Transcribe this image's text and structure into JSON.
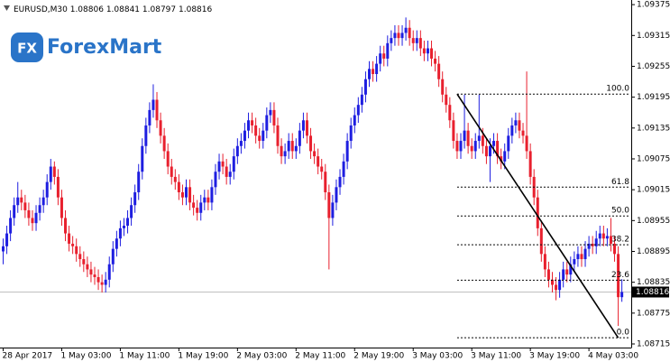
{
  "chart_data": {
    "type": "candlestick",
    "symbol": "EURUSD,M30",
    "logo": "ForexMart",
    "logo_mark": "FX",
    "up_color": "#1e1ee0",
    "down_color": "#e8202e",
    "ylim": [
      1.08708,
      1.09384
    ],
    "yticks": [
      1.09375,
      1.09315,
      1.09255,
      1.09195,
      1.09135,
      1.09075,
      1.09015,
      1.08955,
      1.08895,
      1.08835,
      1.08775,
      1.08715
    ],
    "categories": [
      "28 Apr 2017",
      null,
      null,
      null,
      null,
      null,
      null,
      null,
      null,
      null,
      null,
      null,
      null,
      null,
      null,
      null,
      "1 May 03:00",
      null,
      null,
      null,
      null,
      null,
      null,
      null,
      null,
      null,
      null,
      null,
      null,
      null,
      null,
      null,
      "1 May 11:00",
      null,
      null,
      null,
      null,
      null,
      null,
      null,
      null,
      null,
      null,
      null,
      null,
      null,
      null,
      null,
      "1 May 19:00",
      null,
      null,
      null,
      null,
      null,
      null,
      null,
      null,
      null,
      null,
      null,
      null,
      null,
      null,
      null,
      "2 May 03:00",
      null,
      null,
      null,
      null,
      null,
      null,
      null,
      null,
      null,
      null,
      null,
      null,
      null,
      null,
      null,
      "2 May 11:00",
      null,
      null,
      null,
      null,
      null,
      null,
      null,
      null,
      null,
      null,
      null,
      null,
      null,
      null,
      null,
      "2 May 19:00",
      null,
      null,
      null,
      null,
      null,
      null,
      null,
      null,
      null,
      null,
      null,
      null,
      null,
      null,
      null,
      "3 May 03:00",
      null,
      null,
      null,
      null,
      null,
      null,
      null,
      null,
      null,
      null,
      null,
      null,
      null,
      null,
      null,
      "3 May 11:00",
      null,
      null,
      null,
      null,
      null,
      null,
      null,
      null,
      null,
      null,
      null,
      null,
      null,
      null,
      null,
      "3 May 19:00",
      null,
      null,
      null,
      null,
      null,
      null,
      null,
      null,
      null,
      null,
      null,
      null,
      null,
      null,
      null,
      "4 May 03:00",
      null,
      null,
      null,
      null,
      null,
      null,
      null,
      null,
      null
    ],
    "ohlc": [
      [
        1.08895,
        1.0892,
        1.0887,
        1.08905
      ],
      [
        1.08905,
        1.08945,
        1.0889,
        1.0893
      ],
      [
        1.0893,
        1.08975,
        1.08915,
        1.0896
      ],
      [
        1.0896,
        1.09,
        1.08945,
        1.08985
      ],
      [
        1.08985,
        1.0903,
        1.0897,
        1.09
      ],
      [
        1.09,
        1.09015,
        1.08975,
        1.0899
      ],
      [
        1.0899,
        1.09005,
        1.0896,
        1.08975
      ],
      [
        1.08975,
        1.0899,
        1.08945,
        1.0896
      ],
      [
        1.0896,
        1.08975,
        1.08935,
        1.0895
      ],
      [
        1.0895,
        1.08985,
        1.08935,
        1.0897
      ],
      [
        1.0897,
        1.09,
        1.08955,
        1.08985
      ],
      [
        1.08985,
        1.09015,
        1.0897,
        1.09
      ],
      [
        1.09,
        1.09045,
        1.08985,
        1.0903
      ],
      [
        1.0903,
        1.09075,
        1.09015,
        1.0906
      ],
      [
        1.0906,
        1.0907,
        1.09025,
        1.0904
      ],
      [
        1.0904,
        1.09055,
        1.08985,
        1.09
      ],
      [
        1.09,
        1.09015,
        1.08945,
        1.0896
      ],
      [
        1.0896,
        1.08975,
        1.08915,
        1.0893
      ],
      [
        1.0893,
        1.08945,
        1.08895,
        1.0891
      ],
      [
        1.0891,
        1.08925,
        1.0889,
        1.08905
      ],
      [
        1.08905,
        1.0892,
        1.08875,
        1.0889
      ],
      [
        1.0889,
        1.08905,
        1.08865,
        1.0888
      ],
      [
        1.0888,
        1.08895,
        1.08855,
        1.0887
      ],
      [
        1.0887,
        1.08885,
        1.08845,
        1.0886
      ],
      [
        1.0886,
        1.08875,
        1.08835,
        1.0885
      ],
      [
        1.0885,
        1.08865,
        1.0883,
        1.08845
      ],
      [
        1.08845,
        1.0886,
        1.0882,
        1.08835
      ],
      [
        1.08835,
        1.0885,
        1.08815,
        1.0883
      ],
      [
        1.0883,
        1.08855,
        1.08815,
        1.0884
      ],
      [
        1.0884,
        1.08885,
        1.08825,
        1.0887
      ],
      [
        1.0887,
        1.08915,
        1.08855,
        1.089
      ],
      [
        1.089,
        1.08935,
        1.08885,
        1.0892
      ],
      [
        1.0892,
        1.08955,
        1.08905,
        1.0894
      ],
      [
        1.0894,
        1.0896,
        1.08925,
        1.08945
      ],
      [
        1.08945,
        1.08975,
        1.0893,
        1.0896
      ],
      [
        1.0896,
        1.09,
        1.08945,
        1.08985
      ],
      [
        1.08985,
        1.09025,
        1.0897,
        1.0901
      ],
      [
        1.0901,
        1.09065,
        1.08995,
        1.0905
      ],
      [
        1.0905,
        1.09115,
        1.09035,
        1.091
      ],
      [
        1.091,
        1.09155,
        1.09085,
        1.0914
      ],
      [
        1.0914,
        1.09185,
        1.09125,
        1.0917
      ],
      [
        1.0917,
        1.0922,
        1.09155,
        1.0919
      ],
      [
        1.0919,
        1.09205,
        1.09135,
        1.0915
      ],
      [
        1.0915,
        1.09165,
        1.09105,
        1.0912
      ],
      [
        1.0912,
        1.09135,
        1.09075,
        1.0909
      ],
      [
        1.0909,
        1.09105,
        1.09045,
        1.0906
      ],
      [
        1.0906,
        1.09075,
        1.09025,
        1.0904
      ],
      [
        1.0904,
        1.09055,
        1.09015,
        1.0903
      ],
      [
        1.0903,
        1.09045,
        1.08995,
        1.0901
      ],
      [
        1.0901,
        1.09025,
        1.08985,
        1.09
      ],
      [
        1.09,
        1.09035,
        1.08985,
        1.0902
      ],
      [
        1.0902,
        1.09035,
        1.08975,
        1.0899
      ],
      [
        1.0899,
        1.09005,
        1.08965,
        1.0898
      ],
      [
        1.0898,
        1.08995,
        1.08955,
        1.0897
      ],
      [
        1.0897,
        1.09005,
        1.08955,
        1.0899
      ],
      [
        1.0899,
        1.09015,
        1.08975,
        1.09
      ],
      [
        1.09,
        1.09015,
        1.08975,
        1.0899
      ],
      [
        1.0899,
        1.09035,
        1.08975,
        1.0902
      ],
      [
        1.0902,
        1.09065,
        1.09005,
        1.0905
      ],
      [
        1.0905,
        1.09085,
        1.09035,
        1.0907
      ],
      [
        1.0907,
        1.09085,
        1.09045,
        1.0906
      ],
      [
        1.0906,
        1.09075,
        1.09025,
        1.0904
      ],
      [
        1.0904,
        1.09065,
        1.09025,
        1.0905
      ],
      [
        1.0905,
        1.09095,
        1.09035,
        1.0908
      ],
      [
        1.0908,
        1.09115,
        1.09065,
        1.091
      ],
      [
        1.091,
        1.09125,
        1.09085,
        1.0911
      ],
      [
        1.0911,
        1.09145,
        1.09095,
        1.0913
      ],
      [
        1.0913,
        1.09165,
        1.09115,
        1.0915
      ],
      [
        1.0915,
        1.09165,
        1.09125,
        1.0914
      ],
      [
        1.0914,
        1.09155,
        1.09105,
        1.0912
      ],
      [
        1.0912,
        1.09135,
        1.09095,
        1.0911
      ],
      [
        1.0911,
        1.09145,
        1.09095,
        1.0913
      ],
      [
        1.0913,
        1.09175,
        1.09115,
        1.0916
      ],
      [
        1.0916,
        1.09185,
        1.09145,
        1.0917
      ],
      [
        1.0917,
        1.09185,
        1.09125,
        1.0914
      ],
      [
        1.0914,
        1.09155,
        1.09085,
        1.091
      ],
      [
        1.091,
        1.09115,
        1.09065,
        1.0908
      ],
      [
        1.0908,
        1.09105,
        1.09065,
        1.0909
      ],
      [
        1.0909,
        1.09125,
        1.09075,
        1.0911
      ],
      [
        1.0911,
        1.09125,
        1.09075,
        1.0909
      ],
      [
        1.0909,
        1.09115,
        1.09075,
        1.091
      ],
      [
        1.091,
        1.09145,
        1.09085,
        1.0913
      ],
      [
        1.0913,
        1.09165,
        1.09115,
        1.0915
      ],
      [
        1.0915,
        1.09165,
        1.09105,
        1.0912
      ],
      [
        1.0912,
        1.09135,
        1.09075,
        1.0909
      ],
      [
        1.0909,
        1.09105,
        1.09065,
        1.0908
      ],
      [
        1.0908,
        1.09095,
        1.09045,
        1.0906
      ],
      [
        1.0906,
        1.09075,
        1.09035,
        1.0905
      ],
      [
        1.0905,
        1.09065,
        1.08995,
        1.0901
      ],
      [
        1.0901,
        1.09025,
        1.0886,
        1.0896
      ],
      [
        1.0896,
        1.09005,
        1.08945,
        1.0899
      ],
      [
        1.0899,
        1.09035,
        1.08975,
        1.0902
      ],
      [
        1.0902,
        1.09055,
        1.09005,
        1.0904
      ],
      [
        1.0904,
        1.09085,
        1.09025,
        1.0907
      ],
      [
        1.0907,
        1.09125,
        1.09055,
        1.0911
      ],
      [
        1.0911,
        1.09155,
        1.09095,
        1.0914
      ],
      [
        1.0914,
        1.09175,
        1.09125,
        1.0916
      ],
      [
        1.0916,
        1.09195,
        1.09145,
        1.0918
      ],
      [
        1.0918,
        1.09215,
        1.09165,
        1.092
      ],
      [
        1.092,
        1.09245,
        1.09185,
        1.0923
      ],
      [
        1.0923,
        1.09265,
        1.09215,
        1.0925
      ],
      [
        1.0925,
        1.09265,
        1.09225,
        1.0924
      ],
      [
        1.0924,
        1.09275,
        1.09225,
        1.0926
      ],
      [
        1.0926,
        1.09295,
        1.09245,
        1.0928
      ],
      [
        1.0928,
        1.09295,
        1.09255,
        1.0927
      ],
      [
        1.0927,
        1.09315,
        1.09255,
        1.093
      ],
      [
        1.093,
        1.09325,
        1.09285,
        1.0931
      ],
      [
        1.0931,
        1.09335,
        1.09295,
        1.0932
      ],
      [
        1.0932,
        1.09335,
        1.09295,
        1.0931
      ],
      [
        1.0931,
        1.09335,
        1.09295,
        1.0932
      ],
      [
        1.0932,
        1.0935,
        1.09305,
        1.0933
      ],
      [
        1.0933,
        1.09345,
        1.09295,
        1.0931
      ],
      [
        1.0931,
        1.09325,
        1.09285,
        1.093
      ],
      [
        1.093,
        1.09325,
        1.09285,
        1.0931
      ],
      [
        1.0931,
        1.09325,
        1.09275,
        1.0929
      ],
      [
        1.0929,
        1.09305,
        1.09265,
        1.0928
      ],
      [
        1.0928,
        1.09305,
        1.09265,
        1.0929
      ],
      [
        1.0929,
        1.09305,
        1.09255,
        1.0927
      ],
      [
        1.0927,
        1.09285,
        1.09245,
        1.0926
      ],
      [
        1.0926,
        1.09275,
        1.09215,
        1.0923
      ],
      [
        1.0923,
        1.09245,
        1.09185,
        1.092
      ],
      [
        1.092,
        1.09215,
        1.09165,
        1.0918
      ],
      [
        1.0918,
        1.09195,
        1.09135,
        1.0915
      ],
      [
        1.0915,
        1.09165,
        1.09095,
        1.0911
      ],
      [
        1.0911,
        1.09125,
        1.09075,
        1.0909
      ],
      [
        1.0909,
        1.09125,
        1.09075,
        1.0911
      ],
      [
        1.0911,
        1.092,
        1.09095,
        1.0913
      ],
      [
        1.0913,
        1.09145,
        1.09085,
        1.091
      ],
      [
        1.091,
        1.09115,
        1.09075,
        1.0909
      ],
      [
        1.0909,
        1.09125,
        1.09075,
        1.0911
      ],
      [
        1.0911,
        1.092,
        1.09095,
        1.0912
      ],
      [
        1.0912,
        1.09135,
        1.09085,
        1.091
      ],
      [
        1.091,
        1.09115,
        1.09065,
        1.0908
      ],
      [
        1.0908,
        1.09115,
        1.0903,
        1.091
      ],
      [
        1.091,
        1.09125,
        1.09085,
        1.0911
      ],
      [
        1.0911,
        1.09125,
        1.09065,
        1.0908
      ],
      [
        1.0908,
        1.09095,
        1.09055,
        1.0907
      ],
      [
        1.0907,
        1.09105,
        1.09055,
        1.0909
      ],
      [
        1.0909,
        1.09135,
        1.09075,
        1.0912
      ],
      [
        1.0912,
        1.09155,
        1.09105,
        1.0914
      ],
      [
        1.0914,
        1.09165,
        1.09125,
        1.0915
      ],
      [
        1.0915,
        1.09165,
        1.09115,
        1.0913
      ],
      [
        1.0913,
        1.09145,
        1.09105,
        1.0912
      ],
      [
        1.0912,
        1.09245,
        1.09075,
        1.0909
      ],
      [
        1.0909,
        1.09105,
        1.09025,
        1.0904
      ],
      [
        1.0904,
        1.09055,
        1.08985,
        1.09
      ],
      [
        1.09,
        1.09015,
        1.08925,
        1.0894
      ],
      [
        1.0894,
        1.08955,
        1.08875,
        1.0889
      ],
      [
        1.0889,
        1.08905,
        1.08845,
        1.0886
      ],
      [
        1.0886,
        1.08875,
        1.08825,
        1.0884
      ],
      [
        1.0884,
        1.08855,
        1.08815,
        1.0883
      ],
      [
        1.0883,
        1.08845,
        1.088,
        1.0882
      ],
      [
        1.0882,
        1.08855,
        1.08805,
        1.0884
      ],
      [
        1.0884,
        1.08875,
        1.08825,
        1.0886
      ],
      [
        1.0886,
        1.08875,
        1.08835,
        1.0885
      ],
      [
        1.0885,
        1.08885,
        1.08835,
        1.0887
      ],
      [
        1.0887,
        1.08895,
        1.08855,
        1.0888
      ],
      [
        1.0888,
        1.08905,
        1.08865,
        1.0889
      ],
      [
        1.0889,
        1.08905,
        1.08865,
        1.0888
      ],
      [
        1.0888,
        1.08915,
        1.08865,
        1.089
      ],
      [
        1.089,
        1.08925,
        1.08885,
        1.0891
      ],
      [
        1.0891,
        1.08925,
        1.0889,
        1.08905
      ],
      [
        1.08905,
        1.08935,
        1.0889,
        1.0892
      ],
      [
        1.0892,
        1.08945,
        1.08905,
        1.0893
      ],
      [
        1.0893,
        1.08945,
        1.08905,
        1.0892
      ],
      [
        1.0892,
        1.0894,
        1.08905,
        1.08925
      ],
      [
        1.08925,
        1.0896,
        1.08895,
        1.0891
      ],
      [
        1.0891,
        1.08925,
        1.08875,
        1.0889
      ],
      [
        1.0889,
        1.08905,
        1.0875,
        1.08806
      ],
      [
        1.08806,
        1.08841,
        1.08797,
        1.08816
      ]
    ],
    "fibo": [
      {
        "label": "100.0",
        "value": 1.09201
      },
      {
        "label": "61.8",
        "value": 1.0902
      },
      {
        "label": "50.0",
        "value": 1.08964
      },
      {
        "label": "38.2",
        "value": 1.08908
      },
      {
        "label": "23.6",
        "value": 1.08839
      },
      {
        "label": "0.0",
        "value": 1.08727
      }
    ],
    "trendline": {
      "from": [
        124,
        1.09201
      ],
      "to": [
        168,
        1.08727
      ]
    }
  }
}
